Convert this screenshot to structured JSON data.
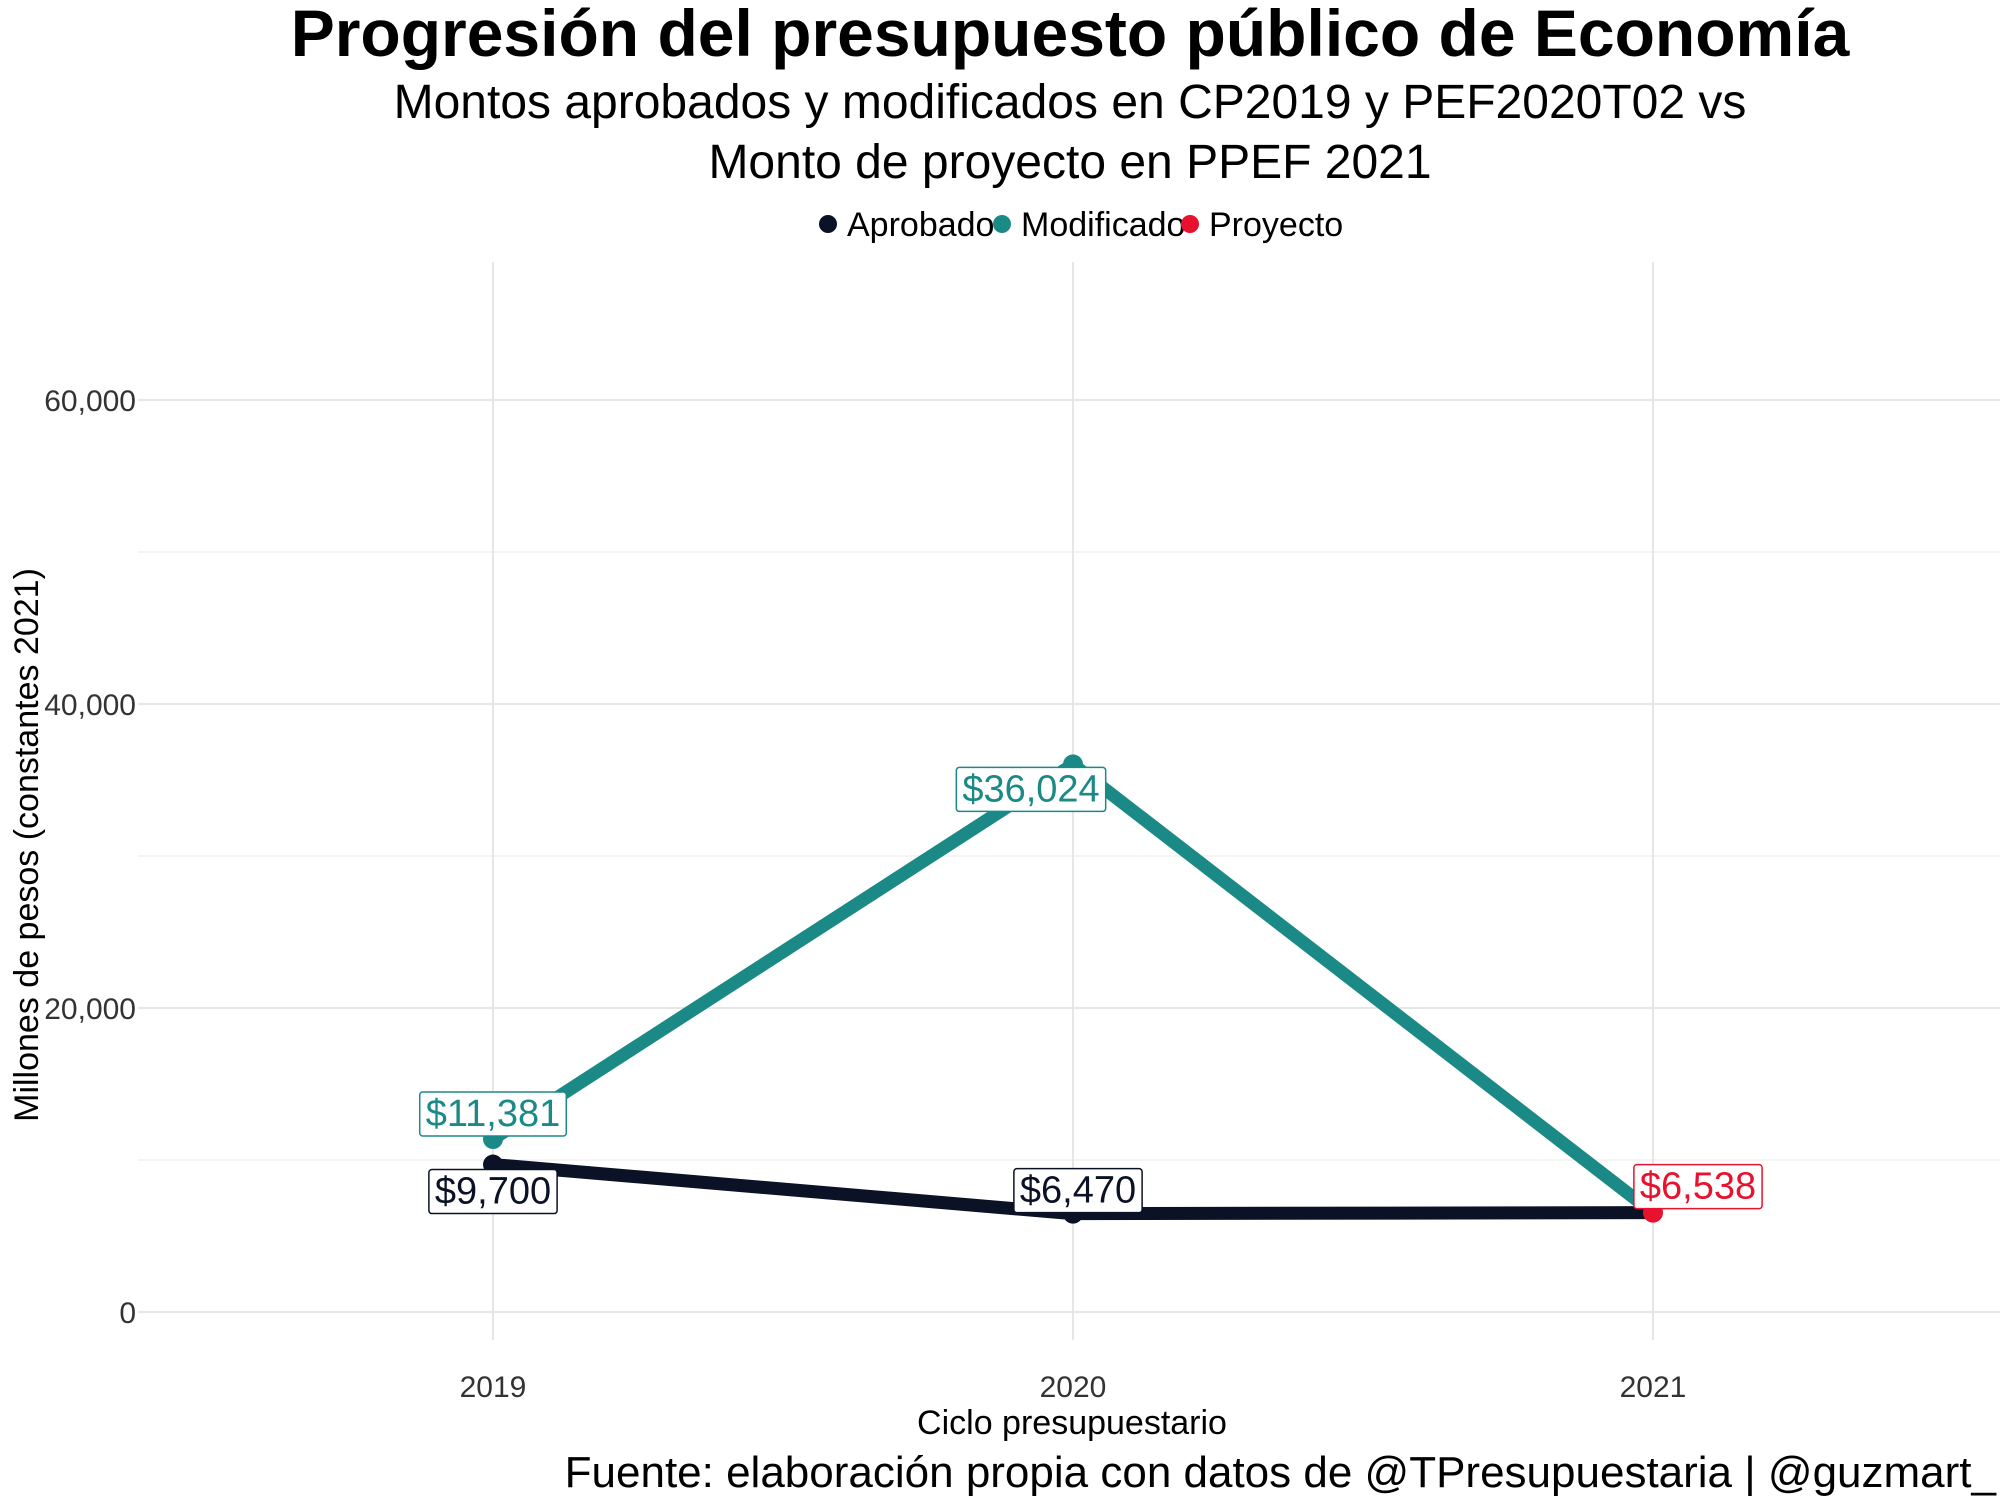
{
  "chart_data": {
    "type": "line",
    "title": "Progresión del presupuesto público de Economía",
    "subtitle_lines": [
      "Montos aprobados y modificados en CP2019 y PEF2020T02 vs",
      "Monto de proyecto en PPEF 2021"
    ],
    "xlabel": "Ciclo presupuestario",
    "ylabel": "Millones de pesos (constantes 2021)",
    "caption": "Fuente: elaboración propia con datos de @TPresupuestaria | @guzmart_",
    "categories": [
      "2019",
      "2020",
      "2021"
    ],
    "ylim": [
      0,
      66000
    ],
    "yticks": [
      0,
      20000,
      40000,
      60000
    ],
    "ytick_labels": [
      "0",
      "20,000",
      "40,000",
      "60,000"
    ],
    "grid": true,
    "legend_position": "top",
    "legend": [
      {
        "name": "Aprobado",
        "color": "#0b1226"
      },
      {
        "name": "Modificado",
        "color": "#1b8a86"
      },
      {
        "name": "Proyecto",
        "color": "#e8122e"
      }
    ],
    "series": [
      {
        "name": "Modificado",
        "color": "#1b8a86",
        "values": [
          11381,
          36024,
          6538
        ],
        "labels": [
          "$11,381",
          "$36,024",
          null
        ]
      },
      {
        "name": "Aprobado",
        "color": "#0b1226",
        "values": [
          9700,
          6470,
          6538
        ],
        "labels": [
          "$9,700",
          "$6,470",
          null
        ]
      }
    ],
    "points": [
      {
        "series": "Proyecto",
        "category": "2021",
        "value": 6538,
        "label": "$6,538",
        "color": "#e8122e"
      }
    ]
  }
}
